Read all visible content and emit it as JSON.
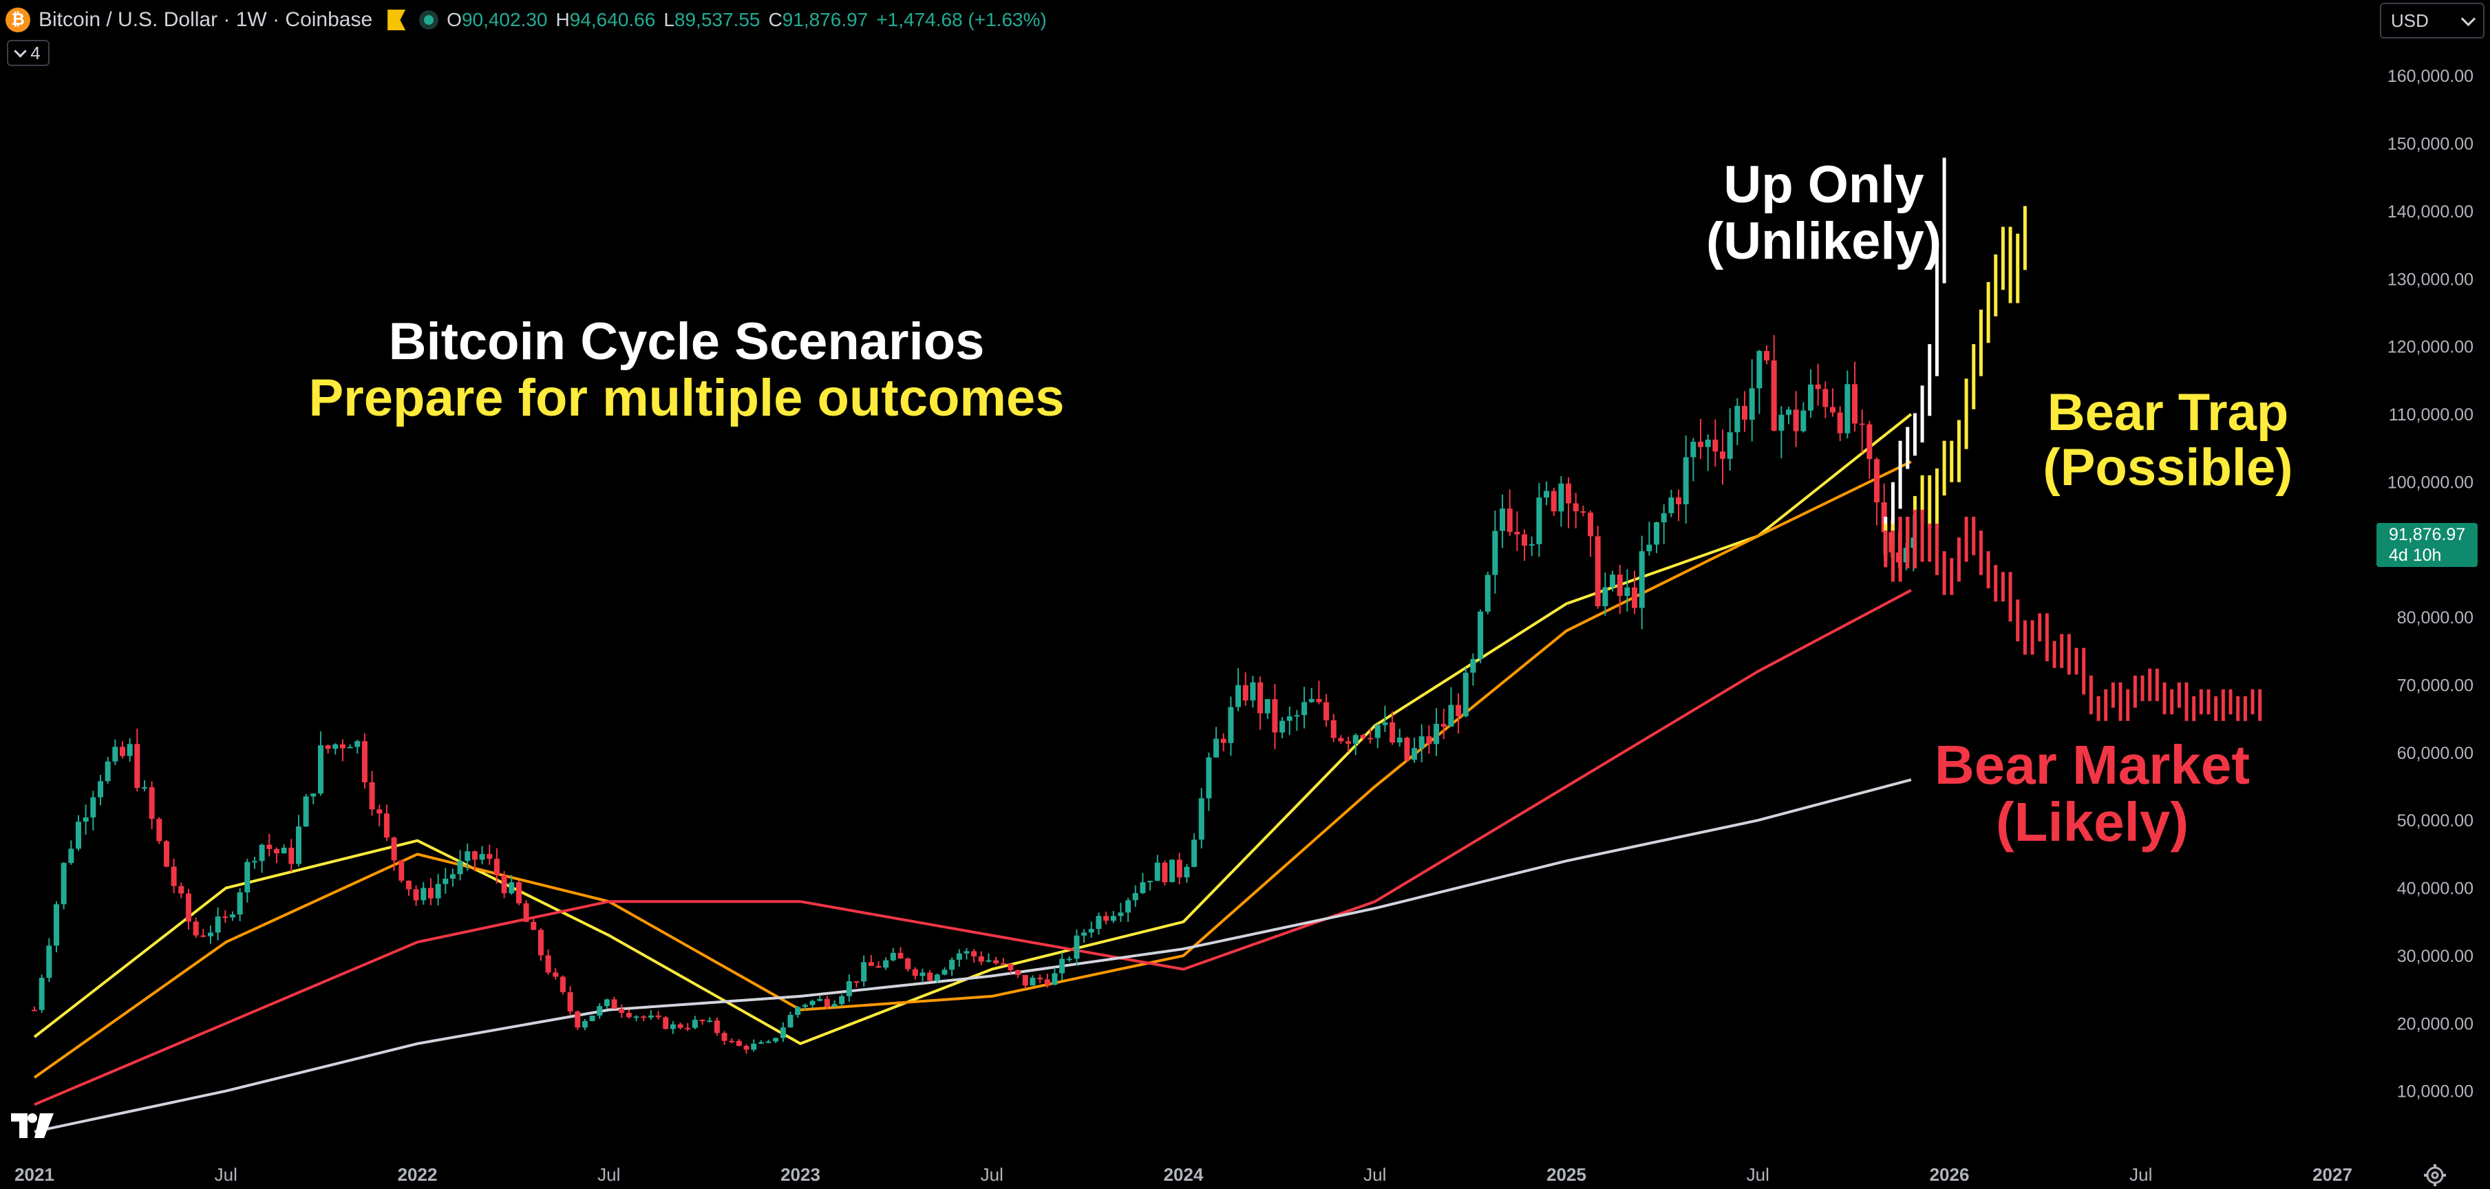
{
  "header": {
    "logo_char": "₿",
    "title": "Bitcoin / U.S. Dollar · 1W · Coinbase",
    "ohlc": [
      {
        "k": "O",
        "v": "90,402.30"
      },
      {
        "k": "H",
        "v": "94,640.66"
      },
      {
        "k": "L",
        "v": "89,537.55"
      },
      {
        "k": "C",
        "v": "91,876.97"
      },
      {
        "k": "",
        "v": "+1,474.68 (+1.63%)"
      }
    ],
    "indicator_count": "4"
  },
  "currency": {
    "label": "USD"
  },
  "price_label": {
    "price": "91,876.97",
    "countdown": "4d 10h"
  },
  "annotations": {
    "headline_1": "Bitcoin Cycle Scenarios",
    "headline_2": "Prepare for multiple outcomes",
    "up_only_1": "Up Only",
    "up_only_2": "(Unlikely)",
    "bear_trap_1": "Bear Trap",
    "bear_trap_2": "(Possible)",
    "bear_market_1": "Bear Market",
    "bear_market_2": "(Likely)"
  },
  "colors": {
    "background": "#000000",
    "up": "#22ab94",
    "down": "#f23645",
    "ma_fast": "#ffeb3b",
    "ma_mid": "#ff9800",
    "ma_slow": "#f23645",
    "ma_long": "#d1d4dc",
    "scenario_up": "#ffffff",
    "scenario_trap": "#ffeb3b",
    "scenario_bear": "#f23645",
    "text_white": "#ffffff",
    "text_yellow": "#ffeb3b",
    "text_red": "#f23645",
    "axis_text": "#b2b5be"
  },
  "icons": {
    "logo": "bitcoin-icon",
    "flag": "flag-icon",
    "status": "market-status-icon",
    "chevron": "chevron-down-icon",
    "currency_chevron": "chevron-down-icon",
    "tradingview": "tradingview-logo-icon",
    "settings": "gear-icon"
  },
  "chart_data": {
    "type": "line",
    "title": "Bitcoin / U.S. Dollar · 1W · Coinbase",
    "xlabel": "",
    "ylabel": "",
    "x_ticks": [
      "2021",
      "Jul",
      "2022",
      "Jul",
      "2023",
      "Jul",
      "2024",
      "Jul",
      "2025",
      "Jul",
      "2026",
      "Jul",
      "2027"
    ],
    "x_range": [
      "2021-01",
      "2027-01"
    ],
    "y_ticks": [
      "10,000.00",
      "20,000.00",
      "30,000.00",
      "40,000.00",
      "50,000.00",
      "60,000.00",
      "70,000.00",
      "80,000.00",
      "90,000.00",
      "100,000.00",
      "110,000.00",
      "120,000.00",
      "130,000.00",
      "140,000.00",
      "150,000.00",
      "160,000.00"
    ],
    "ylim": [
      3000,
      165000
    ],
    "grid": false,
    "price_points": [
      [
        "2021-01",
        22000
      ],
      [
        "2021-02",
        45000
      ],
      [
        "2021-03",
        57000
      ],
      [
        "2021-04",
        60000
      ],
      [
        "2021-05",
        45000
      ],
      [
        "2021-06",
        33000
      ],
      [
        "2021-07",
        35000
      ],
      [
        "2021-08",
        47000
      ],
      [
        "2021-09",
        44000
      ],
      [
        "2021-10",
        60000
      ],
      [
        "2021-11",
        63000
      ],
      [
        "2021-12",
        47000
      ],
      [
        "2022-01",
        38000
      ],
      [
        "2022-02",
        42000
      ],
      [
        "2022-03",
        45000
      ],
      [
        "2022-04",
        39000
      ],
      [
        "2022-05",
        29000
      ],
      [
        "2022-06",
        20000
      ],
      [
        "2022-07",
        23000
      ],
      [
        "2022-08",
        21000
      ],
      [
        "2022-09",
        19500
      ],
      [
        "2022-10",
        20300
      ],
      [
        "2022-11",
        16500
      ],
      [
        "2022-12",
        16800
      ],
      [
        "2023-01",
        23000
      ],
      [
        "2023-02",
        23500
      ],
      [
        "2023-03",
        28000
      ],
      [
        "2023-04",
        29500
      ],
      [
        "2023-05",
        27000
      ],
      [
        "2023-06",
        30500
      ],
      [
        "2023-07",
        29300
      ],
      [
        "2023-08",
        26000
      ],
      [
        "2023-09",
        27000
      ],
      [
        "2023-10",
        34500
      ],
      [
        "2023-11",
        37700
      ],
      [
        "2023-12",
        42500
      ],
      [
        "2024-01",
        42500
      ],
      [
        "2024-02",
        61000
      ],
      [
        "2024-03",
        70000
      ],
      [
        "2024-04",
        63000
      ],
      [
        "2024-05",
        67000
      ],
      [
        "2024-06",
        62700
      ],
      [
        "2024-07",
        64500
      ],
      [
        "2024-08",
        59000
      ],
      [
        "2024-09",
        63300
      ],
      [
        "2024-10",
        70200
      ],
      [
        "2024-11",
        96400
      ],
      [
        "2024-12",
        93400
      ],
      [
        "2025-01",
        102000
      ],
      [
        "2025-02",
        84300
      ],
      [
        "2025-03",
        82500
      ],
      [
        "2025-04",
        94200
      ],
      [
        "2025-05",
        104600
      ],
      [
        "2025-06",
        107100
      ],
      [
        "2025-07",
        115700
      ],
      [
        "2025-08",
        108200
      ],
      [
        "2025-09",
        114000
      ],
      [
        "2025-10",
        109500
      ],
      [
        "2025-11",
        90400
      ],
      [
        "2025-12",
        91877
      ]
    ],
    "series": [
      {
        "values": [
          [
            2021.0,
            18000
          ],
          [
            2021.5,
            40000
          ],
          [
            2022.0,
            47000
          ],
          [
            2022.5,
            33000
          ],
          [
            2023.0,
            17000
          ],
          [
            2023.5,
            28000
          ],
          [
            2024.0,
            35000
          ],
          [
            2024.5,
            64000
          ],
          [
            2025.0,
            82000
          ],
          [
            2025.5,
            92000
          ],
          [
            2025.9,
            110000
          ]
        ]
      },
      {
        "values": [
          [
            2021.0,
            12000
          ],
          [
            2021.5,
            32000
          ],
          [
            2022.0,
            45000
          ],
          [
            2022.5,
            38000
          ],
          [
            2023.0,
            22000
          ],
          [
            2023.5,
            24000
          ],
          [
            2024.0,
            30000
          ],
          [
            2024.5,
            55000
          ],
          [
            2025.0,
            78000
          ],
          [
            2025.5,
            92000
          ],
          [
            2025.9,
            103000
          ]
        ]
      },
      {
        "values": [
          [
            2021.0,
            8000
          ],
          [
            2021.5,
            20000
          ],
          [
            2022.0,
            32000
          ],
          [
            2022.5,
            38000
          ],
          [
            2023.0,
            38000
          ],
          [
            2023.5,
            33000
          ],
          [
            2024.0,
            28000
          ],
          [
            2024.5,
            38000
          ],
          [
            2025.0,
            55000
          ],
          [
            2025.5,
            72000
          ],
          [
            2025.9,
            84000
          ]
        ]
      },
      {
        "values": [
          [
            2021.0,
            4000
          ],
          [
            2021.5,
            10000
          ],
          [
            2022.0,
            17000
          ],
          [
            2022.5,
            22000
          ],
          [
            2023.0,
            24000
          ],
          [
            2023.5,
            27000
          ],
          [
            2024.0,
            31000
          ],
          [
            2024.5,
            37000
          ],
          [
            2025.0,
            44000
          ],
          [
            2025.5,
            50000
          ],
          [
            2025.9,
            56000
          ]
        ]
      }
    ],
    "scenarios": [
      {
        "start": "2025-11",
        "weeks": 9,
        "values": [
          93000,
          98000,
          104000,
          106000,
          108000,
          112000,
          118000,
          132000,
          145000
        ]
      },
      {
        "start": "2025-11",
        "weeks": 20,
        "values": [
          92000,
          88000,
          93000,
          90000,
          96000,
          99000,
          95000,
          100000,
          104000,
          102000,
          107000,
          113000,
          118000,
          123000,
          127000,
          131000,
          135000,
          129000,
          134000,
          138000
        ]
      },
      {
        "start": "2025-11",
        "weeks": 52,
        "values": [
          91000,
          87000,
          93000,
          89000,
          94000,
          90000,
          92000,
          88000,
          85000,
          87000,
          90000,
          93000,
          91000,
          88000,
          86000,
          84000,
          85000,
          81000,
          78000,
          76000,
          78000,
          79000,
          75000,
          74000,
          76000,
          73000,
          74000,
          70000,
          67000,
          66000,
          68000,
          69000,
          66000,
          68000,
          70000,
          69000,
          71000,
          69000,
          67000,
          68000,
          69000,
          66000,
          67000,
          68000,
          67000,
          66000,
          68000,
          67000,
          66000,
          67000,
          68000,
          66000
        ]
      }
    ]
  }
}
